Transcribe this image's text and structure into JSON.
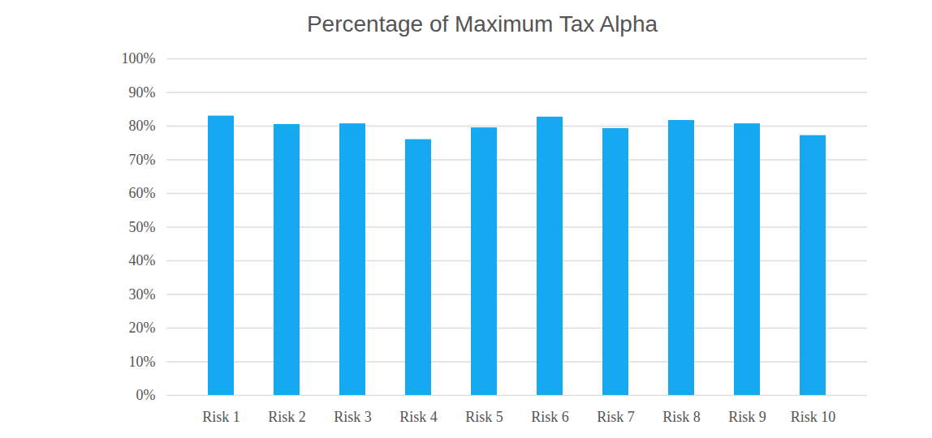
{
  "chart_data": {
    "type": "bar",
    "title": "Percentage of Maximum Tax Alpha",
    "categories": [
      "Risk 1",
      "Risk 2",
      "Risk 3",
      "Risk 4",
      "Risk 5",
      "Risk 6",
      "Risk 7",
      "Risk 8",
      "Risk 9",
      "Risk 10"
    ],
    "values": [
      83,
      80.5,
      80.7,
      76,
      79.5,
      82.7,
      79.3,
      81.7,
      80.7,
      77.2
    ],
    "color": "#14a9f1",
    "ylim": [
      0,
      100
    ],
    "yticks": [
      {
        "value": 0,
        "label": "0%"
      },
      {
        "value": 10,
        "label": "10%"
      },
      {
        "value": 20,
        "label": "20%"
      },
      {
        "value": 30,
        "label": "30%"
      },
      {
        "value": 40,
        "label": "40%"
      },
      {
        "value": 50,
        "label": "50%"
      },
      {
        "value": 60,
        "label": "60%"
      },
      {
        "value": 70,
        "label": "70%"
      },
      {
        "value": 80,
        "label": "80%"
      },
      {
        "value": 90,
        "label": "90%"
      },
      {
        "value": 100,
        "label": "100%"
      }
    ],
    "grid": true
  }
}
